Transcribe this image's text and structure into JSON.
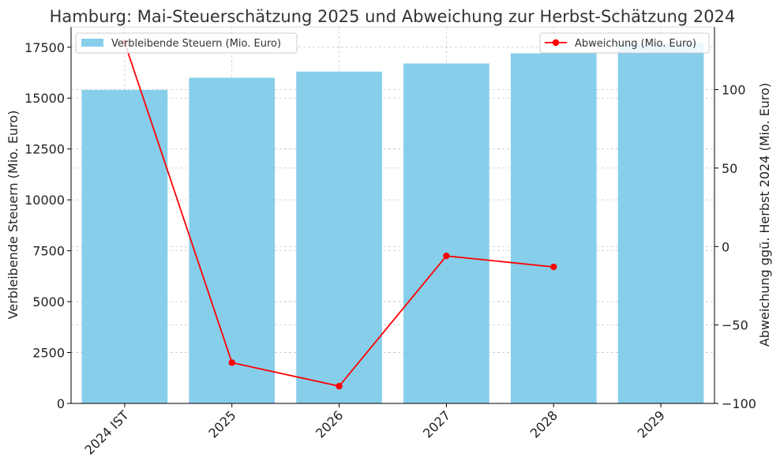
{
  "chart_data": {
    "type": "bar",
    "title": "Hamburg: Mai-Steuerschätzung 2025 und Abweichung zur Herbst-Schätzung 2024",
    "categories": [
      "2024 IST",
      "2025",
      "2026",
      "2027",
      "2028",
      "2029"
    ],
    "series": [
      {
        "name": "Verbleibende Steuern (Mio. Euro)",
        "type": "bar",
        "axis": "left",
        "color": "#87ceeb",
        "values": [
          15400,
          16000,
          16300,
          16700,
          17200,
          17700
        ]
      },
      {
        "name": "Abweichung (Mio. Euro)",
        "type": "line",
        "axis": "right",
        "color": "#ff0000",
        "values": [
          130,
          -74,
          -89,
          -6,
          -13,
          null
        ]
      }
    ],
    "ylabel_left": "Verbleibende Steuern (Mio. Euro)",
    "ylabel_right": "Abweichung ggü. Herbst 2024 (Mio. Euro)",
    "xlabel": "",
    "ylim_left": [
      0,
      18500
    ],
    "ylim_right": [
      -100,
      140
    ],
    "yticks_left": [
      0,
      2500,
      5000,
      7500,
      10000,
      12500,
      15000,
      17500
    ],
    "yticks_left_labels": [
      "0",
      "2500",
      "5000",
      "7500",
      "10000",
      "12500",
      "15000",
      "17500"
    ],
    "yticks_right": [
      -100,
      -50,
      0,
      50,
      100
    ],
    "yticks_right_labels": [
      "−100",
      "−50",
      "0",
      "50",
      "100"
    ],
    "grid": true,
    "legend_bar_position": "top-left",
    "legend_line_position": "top-right"
  }
}
